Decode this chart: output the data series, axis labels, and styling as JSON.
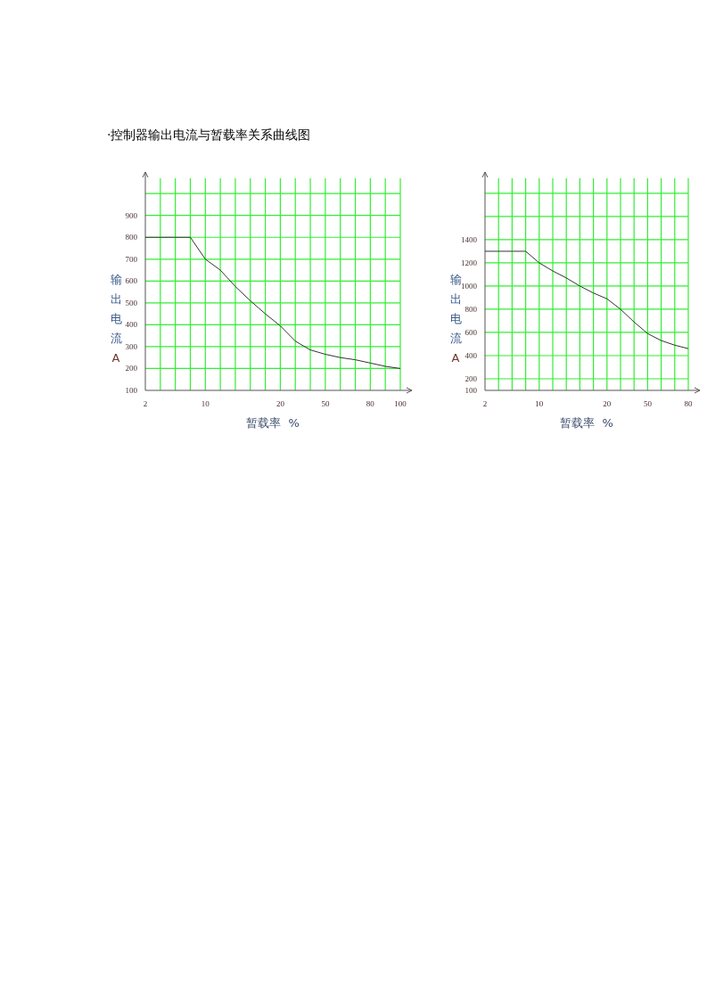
{
  "chart_data": [
    {
      "type": "line",
      "title": "·控制器输出电流与暂载率关系曲线图",
      "xlabel": "暂载率  %",
      "ylabel": "输出电流A",
      "grid": true,
      "categories": [
        "2",
        null,
        null,
        null,
        "10",
        null,
        null,
        null,
        null,
        "20",
        null,
        null,
        "50",
        null,
        null,
        "80",
        null,
        "100"
      ],
      "ylim": [
        100,
        1070
      ],
      "yticks": [
        100,
        200,
        300,
        400,
        500,
        600,
        700,
        800,
        900,
        {
          "value": 1000,
          "label": null
        }
      ],
      "series": [
        {
          "color": "#333333",
          "values": [
            800,
            800,
            800,
            800,
            700,
            650,
            575,
            510,
            450,
            395,
            325,
            285,
            265,
            250,
            240,
            225,
            210,
            200
          ]
        }
      ]
    },
    {
      "type": "line",
      "xlabel": "暂载率  %",
      "ylabel": "输出电流A",
      "grid": true,
      "categories": [
        "2",
        null,
        null,
        null,
        "10",
        null,
        null,
        null,
        null,
        "20",
        null,
        null,
        "50",
        null,
        null,
        "80"
      ],
      "ylim": [
        100,
        1930
      ],
      "yticks": [
        100,
        200,
        400,
        600,
        800,
        1000,
        1200,
        1400,
        {
          "value": 1600,
          "label": null
        },
        {
          "value": 1800,
          "label": null
        }
      ],
      "series": [
        {
          "color": "#333333",
          "values": [
            1300,
            1300,
            1300,
            1300,
            1200,
            1130,
            1070,
            1000,
            940,
            890,
            800,
            690,
            590,
            530,
            490,
            460
          ]
        }
      ]
    }
  ]
}
